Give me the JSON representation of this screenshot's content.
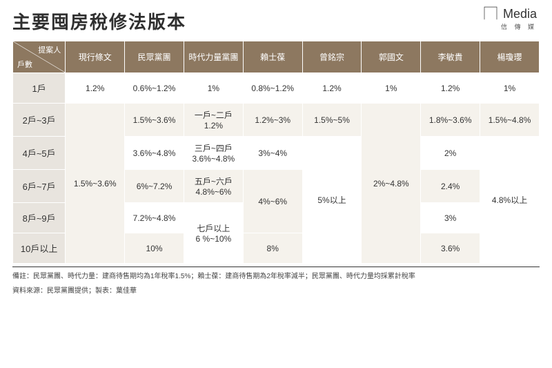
{
  "branding": {
    "logo_main": "⎾⏋Media",
    "logo_sub": "信 傳 媒"
  },
  "title": "主要囤房稅修法版本",
  "header": {
    "diag_top": "提案人",
    "diag_bot": "戶數",
    "cols": [
      "現行條文",
      "民眾黨團",
      "時代力量黨團",
      "賴士葆",
      "曾銘宗",
      "郭國文",
      "李敏貴",
      "楊瓊瓔"
    ]
  },
  "rows": [
    {
      "label": "1戶"
    },
    {
      "label": "2戶~3戶"
    },
    {
      "label": "4戶~5戶"
    },
    {
      "label": "6戶~7戶"
    },
    {
      "label": "8戶~9戶"
    },
    {
      "label": "10戶以上"
    }
  ],
  "grid": {
    "c_current": [
      {
        "row": 0,
        "span": 1,
        "text": "1.2%"
      },
      {
        "row": 1,
        "span": 5,
        "text": "1.5%~3.6%"
      }
    ],
    "c_tpp": [
      {
        "row": 0,
        "span": 1,
        "text": "0.6%~1.2%"
      },
      {
        "row": 1,
        "span": 1,
        "text": "1.5%~3.6%"
      },
      {
        "row": 2,
        "span": 1,
        "text": "3.6%~4.8%"
      },
      {
        "row": 3,
        "span": 1,
        "text": "6%~7.2%"
      },
      {
        "row": 4,
        "span": 1,
        "text": "7.2%~4.8%"
      },
      {
        "row": 5,
        "span": 1,
        "text": "10%"
      }
    ],
    "c_npp": [
      {
        "row": 0,
        "span": 1,
        "text": "1%"
      },
      {
        "row": 1,
        "span": 1,
        "text": "一戶~二戶\n1.2%"
      },
      {
        "row": 2,
        "span": 1,
        "text": "三戶~四戶\n3.6%~4.8%"
      },
      {
        "row": 3,
        "span": 1,
        "text": "五戶~六戶\n4.8%~6%"
      },
      {
        "row": 4,
        "span": 2,
        "text": "七戶以上\n6 %~10%"
      }
    ],
    "c_lai": [
      {
        "row": 0,
        "span": 1,
        "text": "0.8%~1.2%"
      },
      {
        "row": 1,
        "span": 1,
        "text": "1.2%~3%"
      },
      {
        "row": 2,
        "span": 1,
        "text": "3%~4%"
      },
      {
        "row": 3,
        "span": 2,
        "text": "4%~6%"
      },
      {
        "row": 5,
        "span": 1,
        "text": "8%"
      }
    ],
    "c_tseng": [
      {
        "row": 0,
        "span": 1,
        "text": "1.2%"
      },
      {
        "row": 1,
        "span": 1,
        "text": "1.5%~5%"
      },
      {
        "row": 2,
        "span": 4,
        "text": "5%以上"
      }
    ],
    "c_kuo": [
      {
        "row": 0,
        "span": 1,
        "text": "1%"
      },
      {
        "row": 1,
        "span": 5,
        "text": "2%~4.8%"
      }
    ],
    "c_lee": [
      {
        "row": 0,
        "span": 1,
        "text": "1.2%"
      },
      {
        "row": 1,
        "span": 1,
        "text": "1.8%~3.6%"
      },
      {
        "row": 2,
        "span": 1,
        "text": "2%"
      },
      {
        "row": 3,
        "span": 1,
        "text": "2.4%"
      },
      {
        "row": 4,
        "span": 1,
        "text": "3%"
      },
      {
        "row": 5,
        "span": 1,
        "text": "3.6%"
      }
    ],
    "c_yang": [
      {
        "row": 0,
        "span": 1,
        "text": "1%"
      },
      {
        "row": 1,
        "span": 1,
        "text": "1.5%~4.8%"
      },
      {
        "row": 2,
        "span": 4,
        "text": "4.8%以上"
      }
    ]
  },
  "footnotes": [
    "備註：民眾黨團、時代力量：建商待售期均為1年稅率1.5%；賴士葆：建商待售期為2年稅率減半；民眾黨團、時代力量均採累計稅率",
    "資料來源：民眾黨團提供；製表：葉佳華"
  ],
  "styles": {
    "header_bg": "#8d7860",
    "rowhdr_bg": "#e8e4de",
    "stripe_a": "#ffffff",
    "stripe_b": "#f5f2ec",
    "title_color": "#2f2f2f",
    "border_color": "#ffffff",
    "font_size_title": 26,
    "font_size_cell": 12
  }
}
